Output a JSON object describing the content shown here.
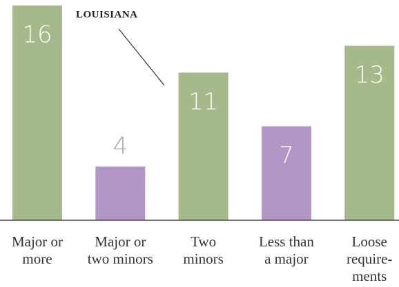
{
  "chart_data": {
    "type": "bar",
    "categories": [
      [
        "Major or",
        "more"
      ],
      [
        "Major or",
        "two minors"
      ],
      [
        "Two",
        "minors"
      ],
      [
        "Less than",
        "a major"
      ],
      [
        "Loose",
        "require-",
        "ments"
      ]
    ],
    "values": [
      16,
      4,
      11,
      7,
      13
    ],
    "colors": [
      "#a5b98b",
      "#b396c8",
      "#a5b98b",
      "#b396c8",
      "#a5b98b"
    ],
    "ylim": [
      0,
      16
    ],
    "annotation": "LOUISIANA"
  }
}
